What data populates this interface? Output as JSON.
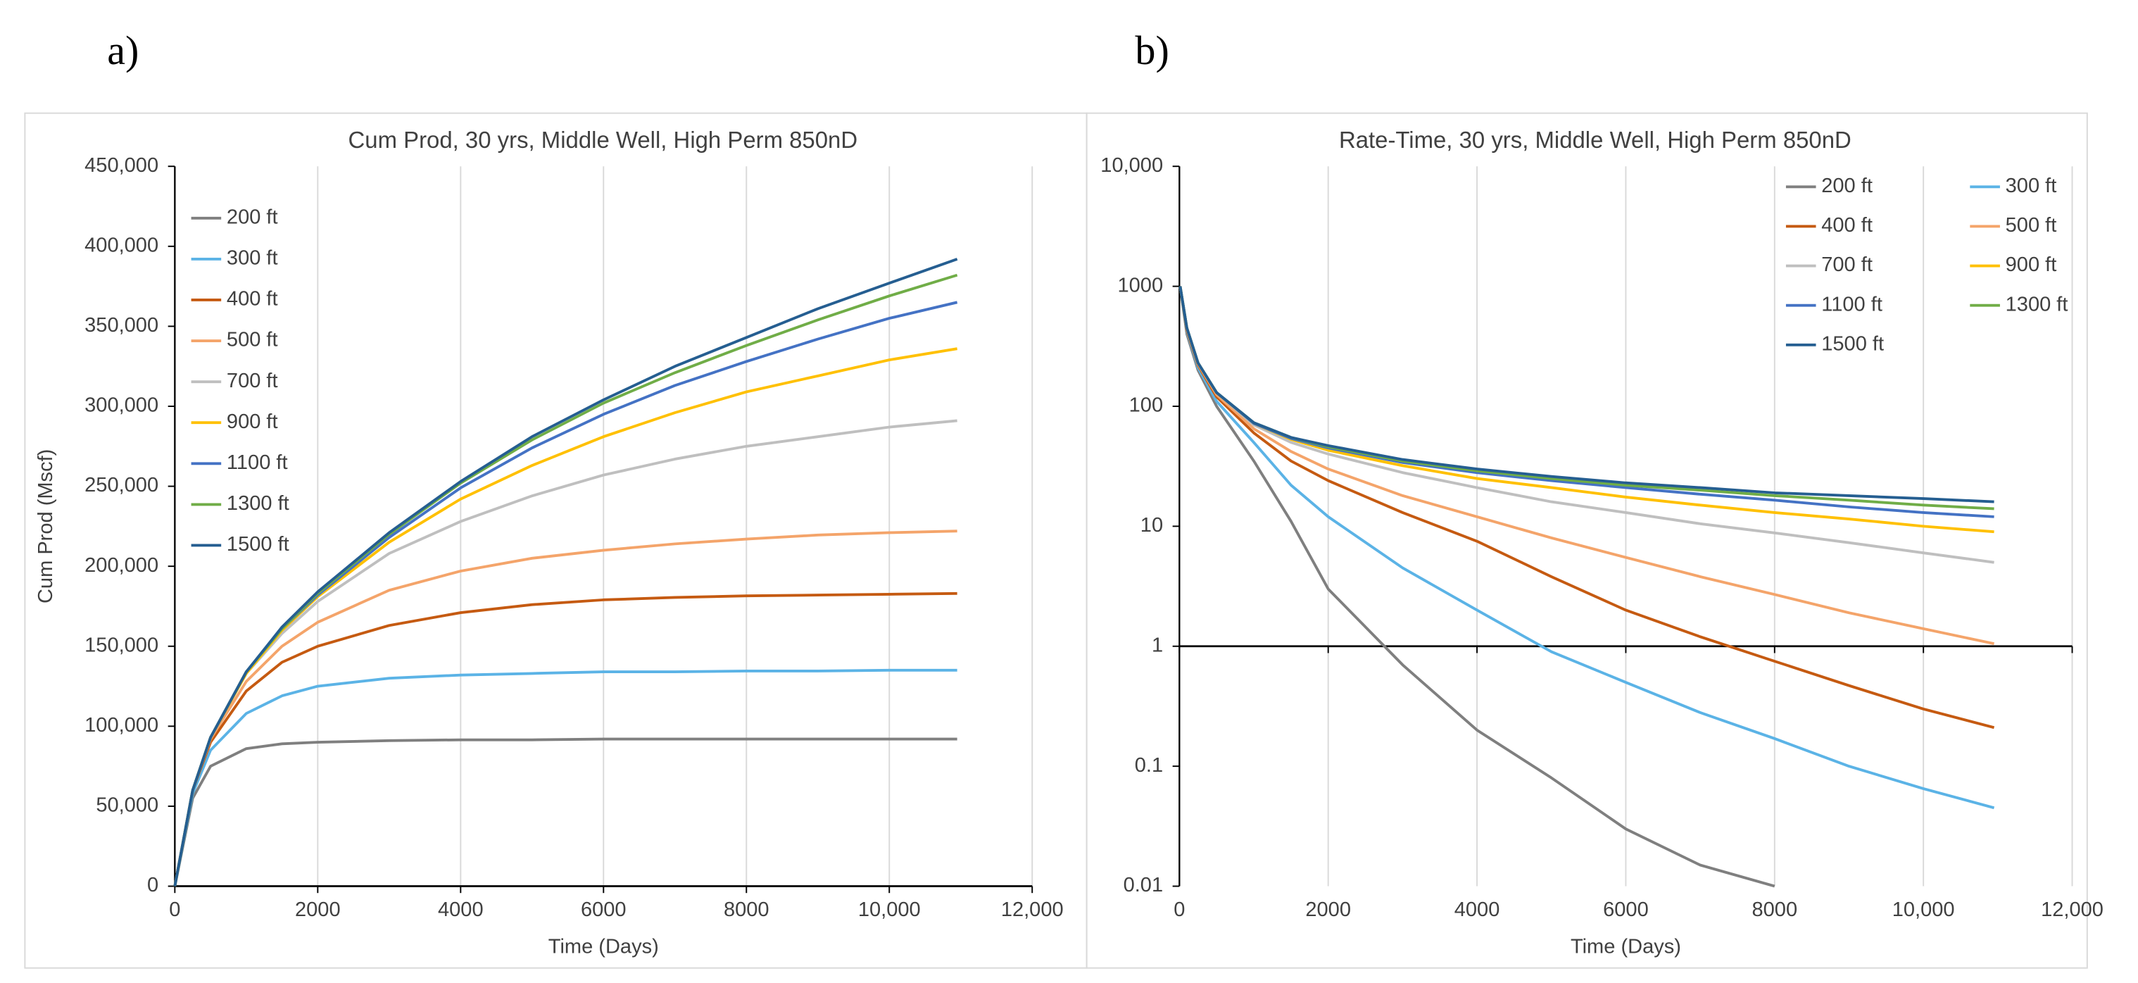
{
  "chart_data": [
    {
      "type": "line",
      "panel_label": "a)",
      "title": "Cum Prod, 30 yrs, Middle Well, High Perm 850nD",
      "x_label": "Time (Days)",
      "y_label": "Cum Prod (Mscf)",
      "x": [
        0,
        250,
        500,
        1000,
        1500,
        2000,
        3000,
        4000,
        5000,
        6000,
        7000,
        8000,
        9000,
        10000,
        10950
      ],
      "xlim": [
        0,
        12000
      ],
      "xticks": [
        0,
        2000,
        4000,
        6000,
        8000,
        {
          "value": 10000,
          "label": "10,000"
        },
        {
          "value": 12000,
          "label": "12,000"
        }
      ],
      "ylim": [
        0,
        450000
      ],
      "yticks": [
        0,
        {
          "value": 50000,
          "label": "50,000"
        },
        {
          "value": 100000,
          "label": "100,000"
        },
        {
          "value": 150000,
          "label": "150,000"
        },
        {
          "value": 200000,
          "label": "200,000"
        },
        {
          "value": 250000,
          "label": "250,000"
        },
        {
          "value": 300000,
          "label": "300,000"
        },
        {
          "value": 350000,
          "label": "350,000"
        },
        {
          "value": 400000,
          "label": "400,000"
        },
        {
          "value": 450000,
          "label": "450,000"
        }
      ],
      "grid": "x",
      "log_y": false,
      "legend": "upper left",
      "series": [
        {
          "name": "200 ft",
          "color": "#7f7f7f",
          "values": [
            0,
            55000,
            75000,
            86000,
            89000,
            90000,
            91000,
            91500,
            91500,
            92000,
            92000,
            92000,
            92000,
            92000,
            92000
          ]
        },
        {
          "name": "300 ft",
          "color": "#5bb3e6",
          "values": [
            0,
            58000,
            85000,
            108000,
            119000,
            125000,
            130000,
            132000,
            133000,
            134000,
            134000,
            134500,
            134500,
            135000,
            135000
          ]
        },
        {
          "name": "400 ft",
          "color": "#c55a11",
          "values": [
            0,
            60000,
            90000,
            122000,
            140000,
            150000,
            163000,
            171000,
            176000,
            179000,
            180500,
            181500,
            182000,
            182500,
            183000
          ]
        },
        {
          "name": "500 ft",
          "color": "#f4a46a",
          "values": [
            0,
            60000,
            92000,
            128000,
            150000,
            165000,
            185000,
            197000,
            205000,
            210000,
            214000,
            217000,
            219500,
            221000,
            222000
          ]
        },
        {
          "name": "700 ft",
          "color": "#bfbfbf",
          "values": [
            0,
            60000,
            93000,
            133000,
            158000,
            178000,
            208000,
            228000,
            244000,
            257000,
            267000,
            275000,
            281000,
            287000,
            291000
          ]
        },
        {
          "name": "900 ft",
          "color": "#ffc000",
          "values": [
            0,
            60000,
            93000,
            133000,
            160000,
            181000,
            215000,
            242000,
            263000,
            281000,
            296000,
            309000,
            319000,
            329000,
            336000
          ]
        },
        {
          "name": "1100 ft",
          "color": "#4472c4",
          "values": [
            0,
            60000,
            93000,
            134000,
            161000,
            182000,
            218000,
            249000,
            274000,
            295000,
            313000,
            328000,
            342000,
            355000,
            365000
          ]
        },
        {
          "name": "1300 ft",
          "color": "#70ad47",
          "values": [
            0,
            60000,
            93000,
            134000,
            161000,
            183000,
            220000,
            252000,
            279000,
            302000,
            321000,
            338000,
            354000,
            369000,
            382000
          ]
        },
        {
          "name": "1500 ft",
          "color": "#255e91",
          "values": [
            0,
            60000,
            93000,
            134000,
            162000,
            184000,
            221000,
            253000,
            281000,
            304000,
            325000,
            343000,
            361000,
            377000,
            392000
          ]
        }
      ]
    },
    {
      "type": "line",
      "panel_label": "b)",
      "title": "Rate-Time, 30 yrs, Middle Well, High Perm 850nD",
      "x_label": "Time (Days)",
      "x": [
        10,
        100,
        250,
        500,
        1000,
        1500,
        2000,
        3000,
        4000,
        5000,
        6000,
        7000,
        8000,
        9000,
        10000,
        10950
      ],
      "xlim": [
        0,
        12000
      ],
      "xticks": [
        0,
        2000,
        4000,
        6000,
        8000,
        {
          "value": 10000,
          "label": "10,000"
        },
        {
          "value": 12000,
          "label": "12,000"
        }
      ],
      "ylim": [
        0.01,
        10000
      ],
      "yticks": [
        0.01,
        0.1,
        1,
        10,
        100,
        1000,
        {
          "value": 10000,
          "label": "10,000"
        }
      ],
      "grid": "x",
      "log_y": true,
      "x_axis_crosses": 1,
      "legend": "upper right",
      "series": [
        {
          "name": "200 ft",
          "color": "#7f7f7f",
          "values": [
            1000,
            400,
            200,
            100,
            35,
            11,
            3,
            0.7,
            0.2,
            0.08,
            0.03,
            0.015,
            0.01,
            null,
            null,
            null
          ]
        },
        {
          "name": "300 ft",
          "color": "#5bb3e6",
          "values": [
            1000,
            420,
            210,
            110,
            50,
            22,
            12,
            4.5,
            2,
            0.9,
            0.5,
            0.28,
            0.17,
            0.1,
            0.065,
            0.045
          ]
        },
        {
          "name": "400 ft",
          "color": "#c55a11",
          "values": [
            1000,
            430,
            220,
            120,
            60,
            35,
            24,
            13,
            7.5,
            3.8,
            2,
            1.2,
            0.75,
            0.47,
            0.3,
            0.21
          ]
        },
        {
          "name": "500 ft",
          "color": "#f4a46a",
          "values": [
            1000,
            440,
            225,
            125,
            65,
            42,
            30,
            18,
            12,
            8,
            5.5,
            3.8,
            2.7,
            1.9,
            1.4,
            1.05
          ]
        },
        {
          "name": "700 ft",
          "color": "#bfbfbf",
          "values": [
            1000,
            450,
            230,
            130,
            70,
            50,
            40,
            28,
            21,
            16,
            13,
            10.5,
            8.8,
            7.3,
            6,
            5
          ]
        },
        {
          "name": "900 ft",
          "color": "#ffc000",
          "values": [
            1000,
            450,
            230,
            130,
            72,
            53,
            43,
            32,
            25,
            21,
            17.5,
            15,
            13,
            11.5,
            10,
            9
          ]
        },
        {
          "name": "1100 ft",
          "color": "#4472c4",
          "values": [
            1000,
            450,
            230,
            130,
            72,
            54,
            45,
            34,
            28,
            24,
            21,
            18.5,
            16.5,
            14.5,
            13,
            12
          ]
        },
        {
          "name": "1300 ft",
          "color": "#70ad47",
          "values": [
            1000,
            450,
            230,
            130,
            73,
            55,
            46,
            35,
            29,
            25,
            22,
            20,
            18,
            16.5,
            15,
            14
          ]
        },
        {
          "name": "1500 ft",
          "color": "#255e91",
          "values": [
            1000,
            450,
            230,
            130,
            73,
            55,
            47,
            36,
            30,
            26,
            23,
            21,
            19,
            18,
            17,
            16
          ]
        }
      ]
    }
  ]
}
